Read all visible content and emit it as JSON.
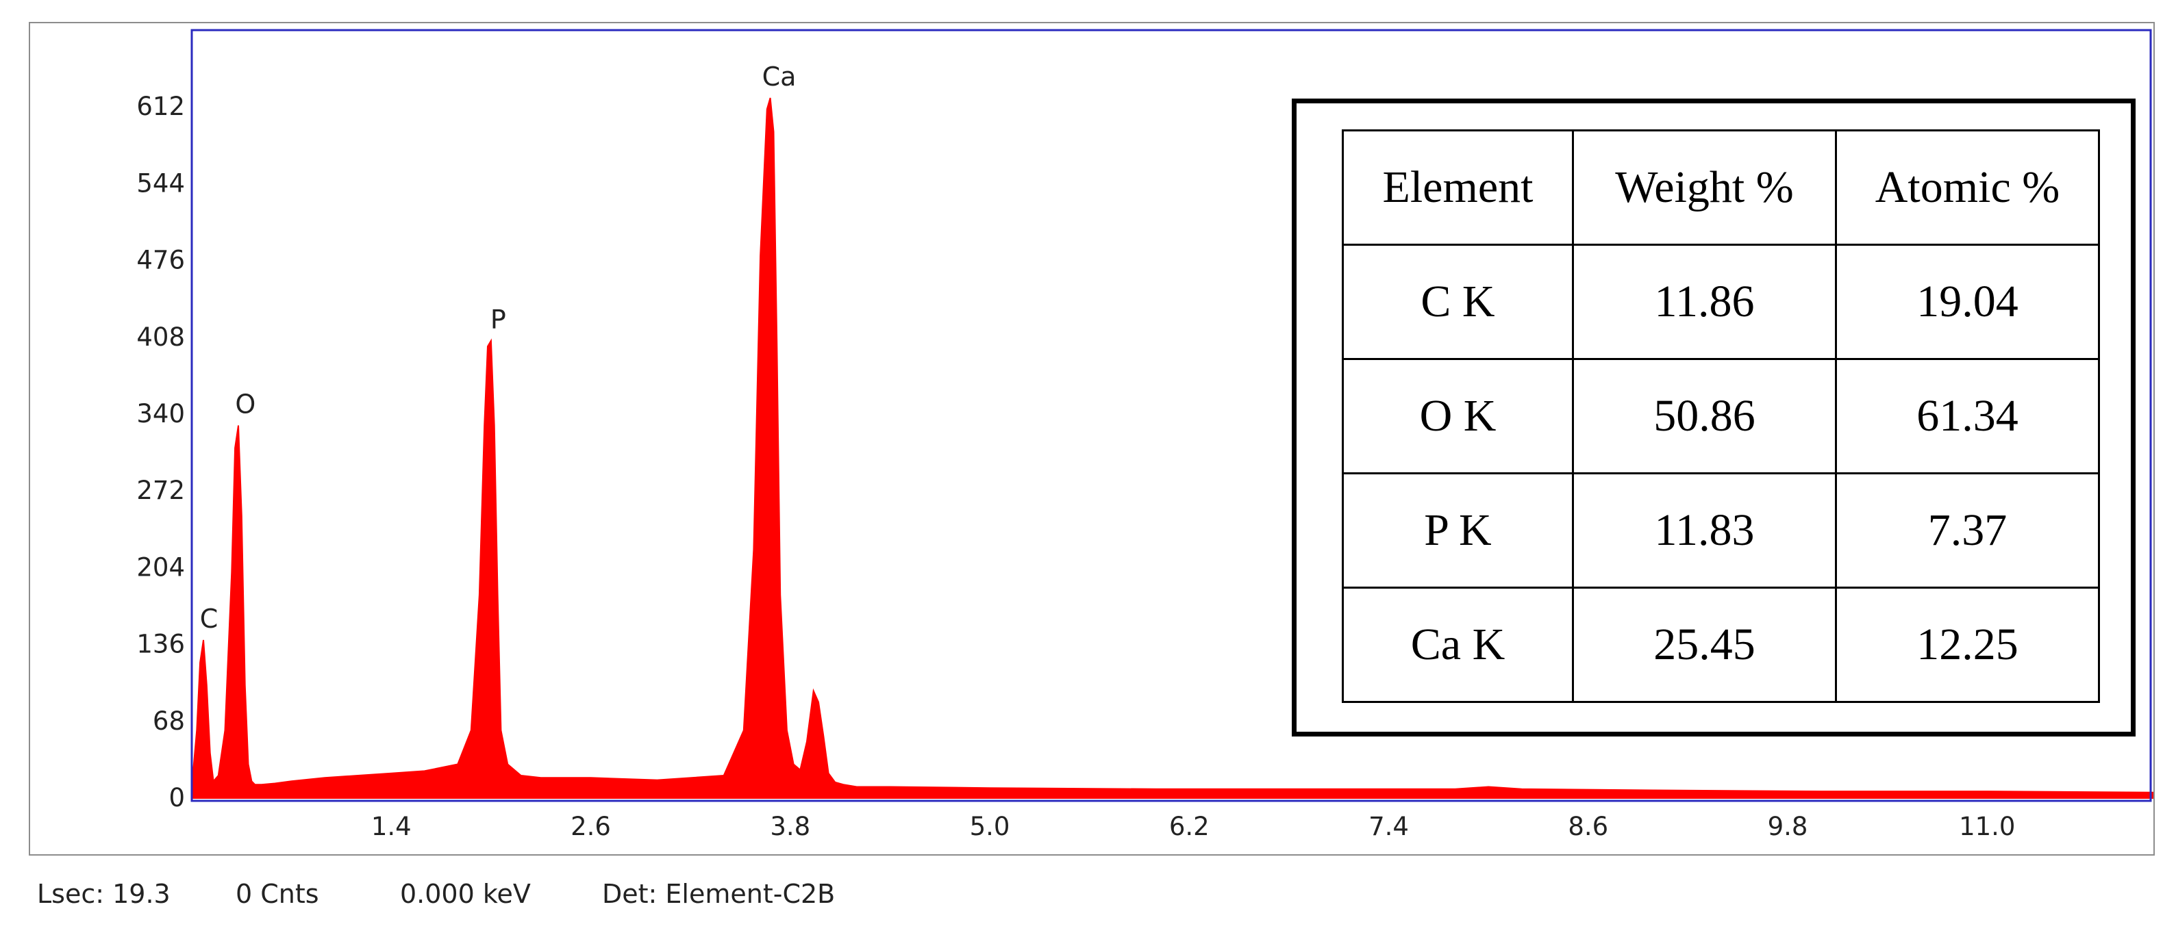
{
  "chart_data": {
    "type": "area",
    "title": "",
    "xlabel": "",
    "ylabel": "",
    "xlim": [
      0.2,
      12.0
    ],
    "ylim": [
      0,
      680
    ],
    "yticks": [
      0,
      68,
      136,
      204,
      272,
      340,
      408,
      476,
      544,
      612
    ],
    "xticks": [
      1.4,
      2.6,
      3.8,
      5.0,
      6.2,
      7.4,
      8.6,
      9.8,
      11.0
    ],
    "xtick_labels": [
      "1.4",
      "2.6",
      "3.8",
      "5.0",
      "6.2",
      "7.4",
      "8.6",
      "9.8",
      "11.0"
    ],
    "ytick_labels": [
      "0",
      "68",
      "136",
      "204",
      "272",
      "340",
      "408",
      "476",
      "544",
      "612"
    ],
    "series": [
      {
        "color": "#ff0000",
        "x": [
          0.2,
          0.23,
          0.25,
          0.27,
          0.29,
          0.31,
          0.33,
          0.36,
          0.4,
          0.44,
          0.46,
          0.48,
          0.5,
          0.52,
          0.54,
          0.56,
          0.58,
          0.62,
          0.7,
          0.8,
          1.0,
          1.2,
          1.4,
          1.6,
          1.8,
          1.88,
          1.93,
          1.96,
          1.98,
          2.0,
          2.02,
          2.04,
          2.06,
          2.1,
          2.18,
          2.3,
          2.6,
          3.0,
          3.4,
          3.52,
          3.58,
          3.62,
          3.66,
          3.68,
          3.7,
          3.72,
          3.74,
          3.78,
          3.82,
          3.86,
          3.9,
          3.94,
          3.97,
          4.0,
          4.03,
          4.07,
          4.12,
          4.2,
          4.4,
          5.0,
          6.0,
          7.0,
          7.8,
          8.0,
          8.2,
          9.0,
          10.0,
          11.0,
          12.0
        ],
        "y": [
          10,
          60,
          120,
          140,
          100,
          40,
          15,
          20,
          60,
          200,
          310,
          330,
          250,
          100,
          30,
          15,
          12,
          12,
          13,
          15,
          18,
          20,
          22,
          24,
          30,
          60,
          180,
          330,
          400,
          405,
          330,
          180,
          60,
          30,
          20,
          18,
          18,
          16,
          20,
          60,
          220,
          480,
          610,
          620,
          590,
          400,
          180,
          60,
          30,
          25,
          50,
          95,
          85,
          55,
          22,
          14,
          12,
          10,
          10,
          9,
          8,
          8,
          8,
          10,
          8,
          7,
          6,
          6,
          5
        ]
      }
    ],
    "peak_labels": [
      {
        "text": "C",
        "x": 0.27,
        "y": 140
      },
      {
        "text": "O",
        "x": 0.49,
        "y": 330
      },
      {
        "text": "P",
        "x": 2.01,
        "y": 405
      },
      {
        "text": "Ca",
        "x": 3.7,
        "y": 620
      }
    ],
    "grid": false,
    "frame_color": "#2b2bbf"
  },
  "composition_table": {
    "headers": [
      "Element",
      "Weight %",
      "Atomic %"
    ],
    "rows": [
      [
        "C K",
        "11.86",
        "19.04"
      ],
      [
        "O K",
        "50.86",
        "61.34"
      ],
      [
        "P K",
        "11.83",
        "7.37"
      ],
      [
        "Ca K",
        "25.45",
        "12.25"
      ]
    ]
  },
  "status_bar": {
    "lsec": "Lsec: 19.3",
    "cnts": "0 Cnts",
    "kev": "0.000 keV",
    "det": "Det: Element-C2B"
  }
}
